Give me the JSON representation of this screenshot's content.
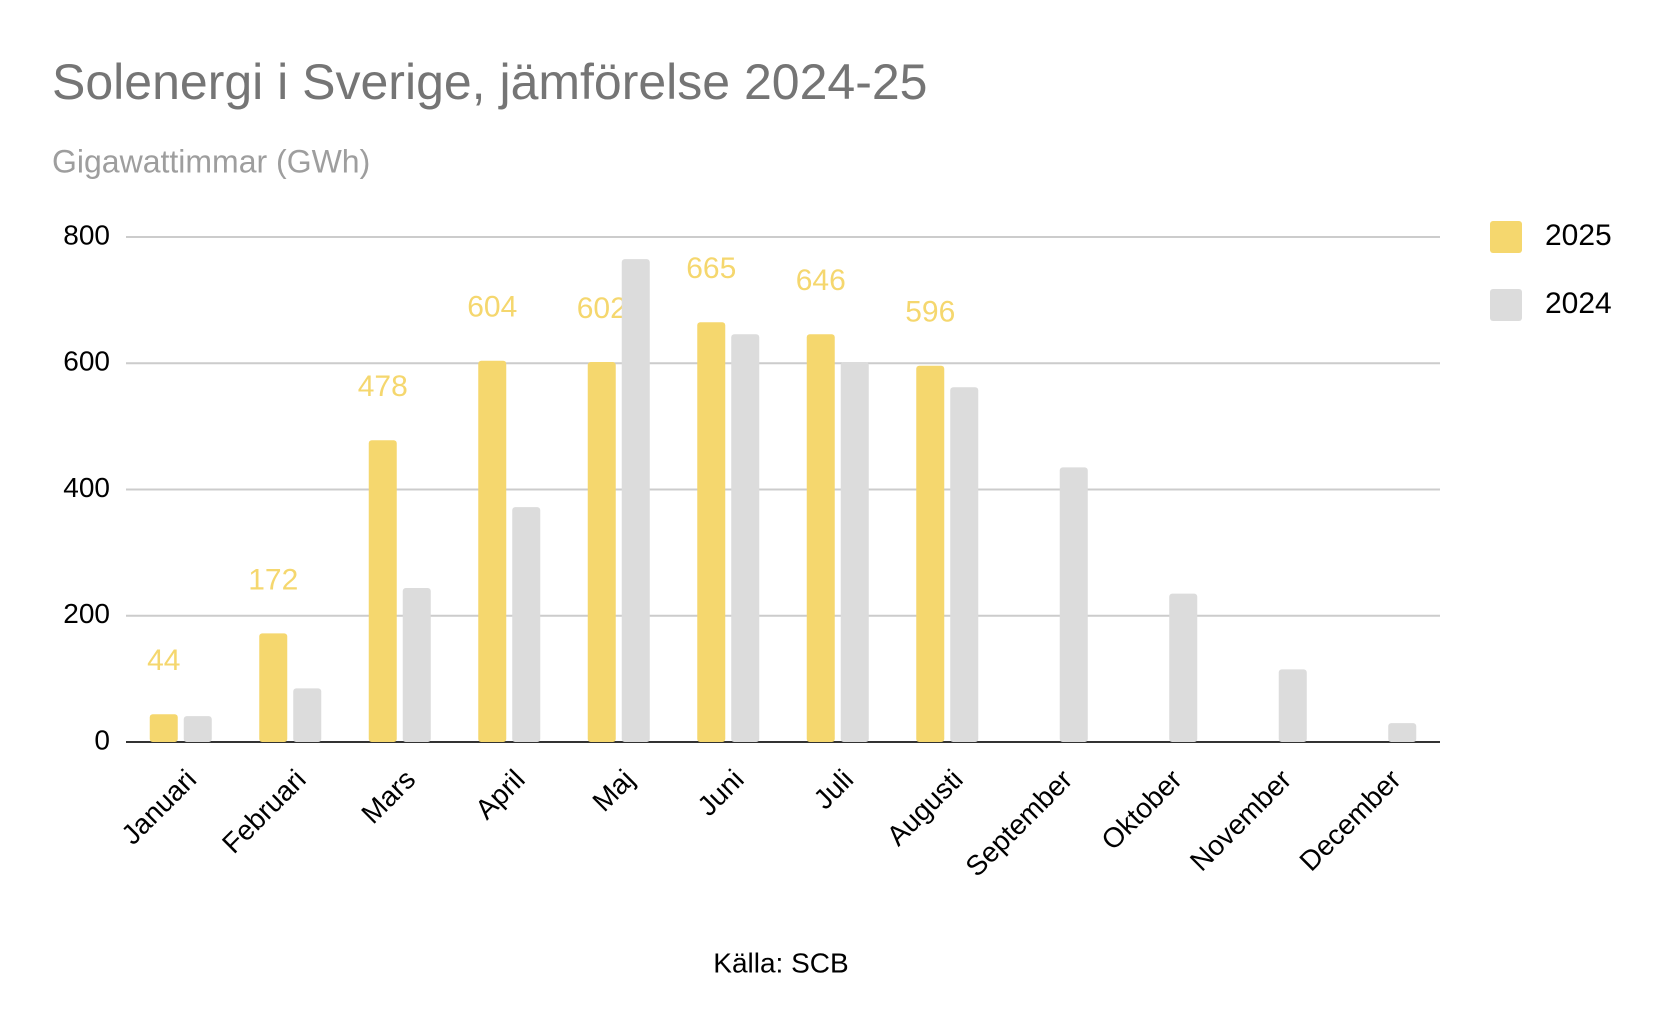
{
  "chart_data": {
    "type": "bar",
    "title": "Solenergi i Sverige, jämförelse 2024-25",
    "subtitle": "Gigawattimmar (GWh)",
    "source": "Källa: SCB",
    "categories": [
      "Januari",
      "Februari",
      "Mars",
      "April",
      "Maj",
      "Juni",
      "Juli",
      "Augusti",
      "September",
      "Oktober",
      "November",
      "December"
    ],
    "series": [
      {
        "name": "2025",
        "color": "#f5d76e",
        "values": [
          44,
          172,
          478,
          604,
          602,
          665,
          646,
          596,
          null,
          null,
          null,
          null
        ],
        "data_labels": true
      },
      {
        "name": "2024",
        "color": "#dcdcdc",
        "values": [
          41,
          85,
          244,
          372,
          765,
          646,
          602,
          562,
          435,
          235,
          115,
          30
        ]
      }
    ],
    "ylim": [
      0,
      800
    ],
    "yticks": [
      0,
      200,
      400,
      600,
      800
    ],
    "grid": true,
    "legend": "right"
  }
}
